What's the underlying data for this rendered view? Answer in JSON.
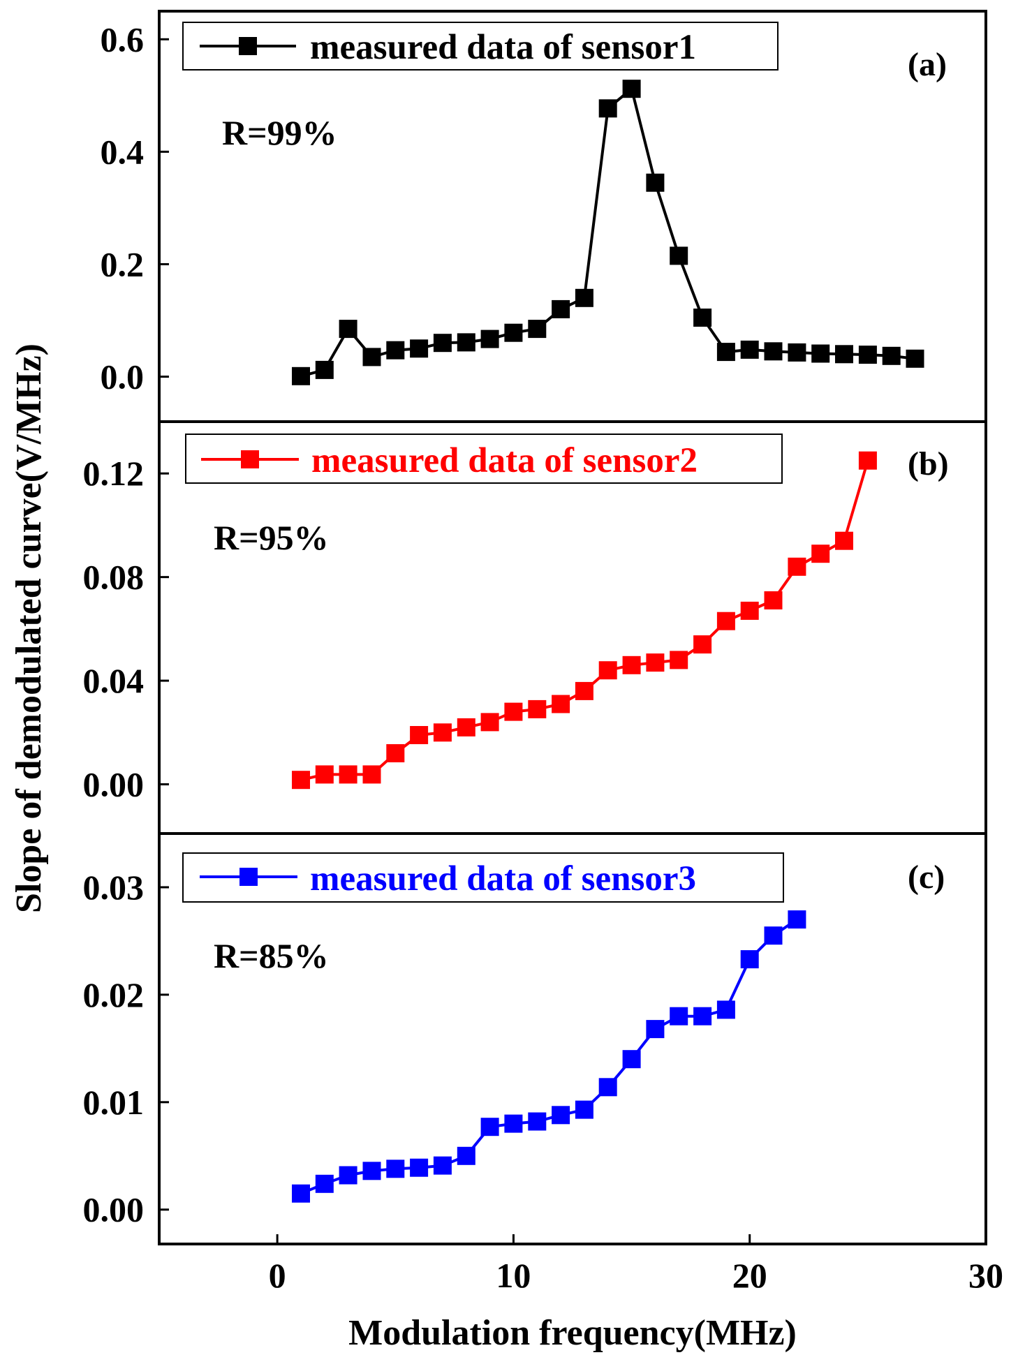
{
  "chart_data": {
    "type": "line",
    "xlabel": "Modulation frequency(MHz)",
    "ylabel": "Slope of demodulated curve(V/MHz)",
    "xlim": [
      -5,
      30
    ],
    "x_ticks": [
      {
        "value": 0,
        "label": "0"
      },
      {
        "value": 10,
        "label": "10"
      },
      {
        "value": 20,
        "label": "20"
      },
      {
        "value": 30,
        "label": "30"
      }
    ],
    "panels": [
      {
        "id": "a",
        "tag": "(a)",
        "annotation": "R=99%",
        "ylim": [
          -0.08,
          0.65
        ],
        "y_ticks": [
          {
            "value": 0.0,
            "label": "0.0"
          },
          {
            "value": 0.2,
            "label": "0.2"
          },
          {
            "value": 0.4,
            "label": "0.4"
          },
          {
            "value": 0.6,
            "label": "0.6"
          }
        ],
        "series": {
          "name": "measured data of sensor1",
          "color": "#000000",
          "x": [
            1,
            2,
            3,
            4,
            5,
            6,
            7,
            8,
            9,
            10,
            11,
            12,
            13,
            14,
            15,
            16,
            17,
            18,
            19,
            20,
            21,
            22,
            23,
            24,
            25,
            26,
            27
          ],
          "y": [
            0.001,
            0.012,
            0.085,
            0.035,
            0.047,
            0.05,
            0.06,
            0.061,
            0.067,
            0.078,
            0.085,
            0.12,
            0.14,
            0.477,
            0.512,
            0.345,
            0.215,
            0.105,
            0.044,
            0.048,
            0.045,
            0.043,
            0.041,
            0.04,
            0.039,
            0.037,
            0.032
          ]
        }
      },
      {
        "id": "b",
        "tag": "(b)",
        "annotation": "R=95%",
        "ylim": [
          -0.019,
          0.14
        ],
        "y_ticks": [
          {
            "value": 0.0,
            "label": "0.00"
          },
          {
            "value": 0.04,
            "label": "0.04"
          },
          {
            "value": 0.08,
            "label": "0.08"
          },
          {
            "value": 0.12,
            "label": "0.12"
          }
        ],
        "series": {
          "name": "measured data of sensor2",
          "color": "#ff0000",
          "x": [
            1,
            2,
            3,
            4,
            5,
            6,
            7,
            8,
            9,
            10,
            11,
            12,
            13,
            14,
            15,
            16,
            17,
            18,
            19,
            20,
            21,
            22,
            23,
            24,
            25
          ],
          "y": [
            0.0017,
            0.0038,
            0.0038,
            0.0038,
            0.012,
            0.019,
            0.02,
            0.022,
            0.024,
            0.028,
            0.029,
            0.031,
            0.036,
            0.044,
            0.046,
            0.047,
            0.048,
            0.054,
            0.063,
            0.067,
            0.071,
            0.084,
            0.089,
            0.094,
            0.125
          ]
        }
      },
      {
        "id": "c",
        "tag": "(c)",
        "annotation": "R=85%",
        "ylim": [
          -0.0032,
          0.035
        ],
        "y_ticks": [
          {
            "value": 0.0,
            "label": "0.00"
          },
          {
            "value": 0.01,
            "label": "0.01"
          },
          {
            "value": 0.02,
            "label": "0.02"
          },
          {
            "value": 0.03,
            "label": "0.03"
          }
        ],
        "series": {
          "name": "measured data of sensor3",
          "color": "#0000ff",
          "x": [
            1,
            2,
            3,
            4,
            5,
            6,
            7,
            8,
            9,
            10,
            11,
            12,
            13,
            14,
            15,
            16,
            17,
            18,
            19,
            20,
            21,
            22
          ],
          "y": [
            0.0015,
            0.0024,
            0.0032,
            0.0036,
            0.0038,
            0.0039,
            0.0041,
            0.005,
            0.0077,
            0.008,
            0.0082,
            0.0088,
            0.0093,
            0.0114,
            0.014,
            0.0168,
            0.018,
            0.018,
            0.0186,
            0.0233,
            0.0255,
            0.027
          ]
        }
      }
    ]
  }
}
